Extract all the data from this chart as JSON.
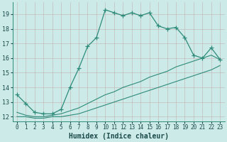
{
  "title": "",
  "xlabel": "Humidex (Indice chaleur)",
  "ylabel": "",
  "bg_color": "#cceae8",
  "grid_color": "#b0d8d5",
  "line_color": "#2e8b7a",
  "xlim": [
    -0.5,
    23.5
  ],
  "ylim": [
    11.7,
    19.8
  ],
  "xticks": [
    0,
    1,
    2,
    3,
    4,
    5,
    6,
    7,
    8,
    9,
    10,
    11,
    12,
    13,
    14,
    15,
    16,
    17,
    18,
    19,
    20,
    21,
    22,
    23
  ],
  "yticks": [
    12,
    13,
    14,
    15,
    16,
    17,
    18,
    19
  ],
  "main_line_x": [
    0,
    1,
    2,
    3,
    4,
    5,
    6,
    7,
    8,
    9,
    10,
    11,
    12,
    13,
    14,
    15,
    16,
    17,
    18,
    19,
    20,
    21,
    22,
    23
  ],
  "main_line_y": [
    13.5,
    12.9,
    12.3,
    12.2,
    12.2,
    12.5,
    14.0,
    15.3,
    16.8,
    17.4,
    19.3,
    19.1,
    18.9,
    19.1,
    18.9,
    19.1,
    18.2,
    18.0,
    18.1,
    17.4,
    16.2,
    16.0,
    16.7,
    15.9
  ],
  "line2_x": [
    0,
    1,
    2,
    3,
    4,
    5,
    6,
    7,
    8,
    9,
    10,
    11,
    12,
    13,
    14,
    15,
    16,
    17,
    18,
    19,
    20,
    21,
    22,
    23
  ],
  "line2_y": [
    12.3,
    12.1,
    12.0,
    12.0,
    12.1,
    12.2,
    12.4,
    12.6,
    12.9,
    13.2,
    13.5,
    13.7,
    14.0,
    14.2,
    14.4,
    14.7,
    14.9,
    15.1,
    15.4,
    15.6,
    15.8,
    16.0,
    16.2,
    15.9
  ],
  "line3_x": [
    0,
    1,
    2,
    3,
    4,
    5,
    6,
    7,
    8,
    9,
    10,
    11,
    12,
    13,
    14,
    15,
    16,
    17,
    18,
    19,
    20,
    21,
    22,
    23
  ],
  "line3_y": [
    12.0,
    12.0,
    11.9,
    11.9,
    12.0,
    12.0,
    12.1,
    12.2,
    12.4,
    12.6,
    12.8,
    13.0,
    13.2,
    13.4,
    13.6,
    13.8,
    14.0,
    14.2,
    14.4,
    14.6,
    14.8,
    15.0,
    15.2,
    15.5
  ]
}
